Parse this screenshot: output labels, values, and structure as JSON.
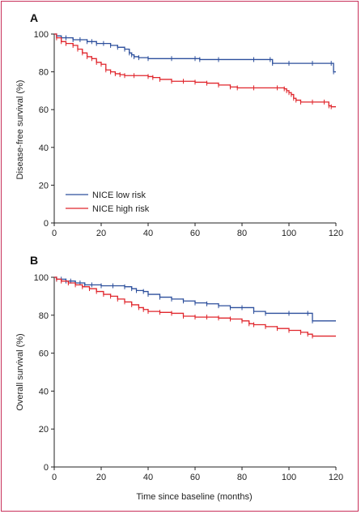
{
  "colors": {
    "low": "#2c4f9c",
    "high": "#e0262c",
    "frame": "#c8305a"
  },
  "chart_data": [
    {
      "type": "line",
      "panel_label": "A",
      "xlabel": "",
      "ylabel": "Disease-free survival (%)",
      "xlim": [
        0,
        120
      ],
      "ylim": [
        0,
        100
      ],
      "xticks": [
        0,
        20,
        40,
        60,
        80,
        100,
        120
      ],
      "yticks": [
        0,
        20,
        40,
        60,
        80,
        100
      ],
      "legend": {
        "placement": "bottom-left",
        "entries": [
          "NICE low risk",
          "NICE high risk"
        ]
      },
      "series": [
        {
          "name": "NICE low risk",
          "color": "#2c4f9c",
          "x": [
            0,
            1,
            3,
            5,
            8,
            11,
            14,
            16,
            18,
            21,
            24,
            27,
            30,
            32,
            33,
            34,
            36,
            40,
            50,
            60,
            62,
            70,
            85,
            92,
            93,
            100,
            110,
            118,
            119,
            120
          ],
          "y": [
            100,
            99,
            98,
            98,
            97,
            97,
            96,
            96,
            95,
            95,
            94,
            93,
            92,
            90,
            89,
            88,
            87.5,
            87,
            87,
            87,
            86.5,
            86.5,
            86.5,
            86.5,
            84.5,
            84.5,
            84.5,
            84.5,
            80,
            80
          ]
        },
        {
          "name": "NICE high risk",
          "color": "#e0262c",
          "x": [
            0,
            1,
            3,
            5,
            8,
            10,
            12,
            14,
            16,
            18,
            20,
            22,
            24,
            26,
            28,
            30,
            34,
            40,
            42,
            45,
            50,
            55,
            60,
            65,
            70,
            75,
            78,
            85,
            95,
            98,
            99,
            100,
            101,
            102,
            103,
            105,
            110,
            115,
            117,
            118,
            120
          ],
          "y": [
            100,
            98,
            96,
            95,
            94,
            92,
            90,
            88,
            87,
            85,
            84,
            81,
            80,
            79,
            78.5,
            78,
            78,
            77.5,
            77,
            76,
            75,
            75,
            74.5,
            74,
            73,
            72,
            71.5,
            71.5,
            71.5,
            71,
            70,
            69,
            68,
            66,
            65,
            64,
            64,
            64,
            62,
            61.5,
            61.5
          ]
        }
      ]
    },
    {
      "type": "line",
      "panel_label": "B",
      "xlabel": "Time since baseline (months)",
      "ylabel": "Overall survival (%)",
      "xlim": [
        0,
        120
      ],
      "ylim": [
        0,
        100
      ],
      "xticks": [
        0,
        20,
        40,
        60,
        80,
        100,
        120
      ],
      "yticks": [
        0,
        20,
        40,
        60,
        80,
        100
      ],
      "series": [
        {
          "name": "NICE low risk",
          "color": "#2c4f9c",
          "x": [
            0,
            1,
            3,
            5,
            7,
            9,
            11,
            13,
            16,
            20,
            25,
            30,
            33,
            35,
            38,
            40,
            45,
            50,
            55,
            60,
            65,
            70,
            75,
            80,
            85,
            90,
            100,
            108,
            110,
            120
          ],
          "y": [
            100,
            99,
            99,
            98,
            98,
            97,
            97,
            96,
            96,
            95.5,
            95.5,
            95,
            94,
            93,
            92.5,
            91,
            89.5,
            88.5,
            87.5,
            86.5,
            86,
            85,
            84,
            84,
            82,
            81,
            81,
            81,
            77,
            77
          ]
        },
        {
          "name": "NICE high risk",
          "color": "#e0262c",
          "x": [
            0,
            1,
            3,
            6,
            9,
            12,
            15,
            18,
            21,
            24,
            27,
            30,
            33,
            36,
            38,
            40,
            45,
            50,
            55,
            60,
            65,
            70,
            75,
            80,
            83,
            85,
            90,
            95,
            100,
            105,
            108,
            110,
            120
          ],
          "y": [
            100,
            99,
            98,
            97,
            96,
            95,
            94,
            92.5,
            91,
            90,
            88.5,
            87,
            85.5,
            84,
            83,
            82,
            81.5,
            81,
            79.5,
            79,
            79,
            78.5,
            78,
            77,
            75.5,
            75,
            74,
            73,
            72,
            71,
            70,
            69,
            69
          ]
        }
      ]
    }
  ]
}
